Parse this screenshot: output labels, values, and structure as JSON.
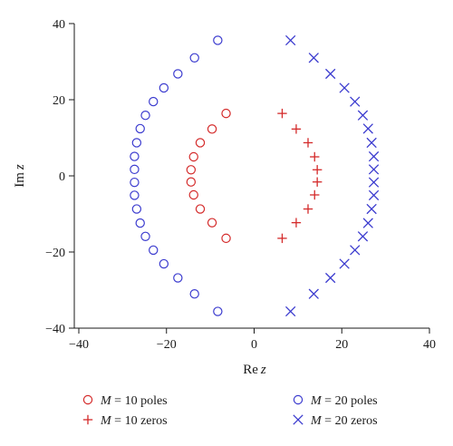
{
  "chart_data": {
    "type": "scatter",
    "title": "",
    "xlabel": {
      "main": "Re",
      "var": "z"
    },
    "ylabel": {
      "main": "Im",
      "var": "z"
    },
    "xlim": [
      -40,
      40
    ],
    "ylim": [
      -40,
      40
    ],
    "xticks": [
      -40,
      -20,
      0,
      20,
      40
    ],
    "yticks": [
      -40,
      -20,
      0,
      20,
      40
    ],
    "xtick_labels": [
      "−40",
      "−20",
      "0",
      "20",
      "40"
    ],
    "ytick_labels": [
      "−40",
      "−20",
      "0",
      "20",
      "40"
    ],
    "grid": false,
    "legend_position": "bottom",
    "series": [
      {
        "name": "M = 10 poles",
        "legend_var": "M",
        "legend_rest": " = 10 poles",
        "marker": "circle",
        "color": "#d42a2a",
        "x": [
          -6.4,
          -9.6,
          -12.3,
          -13.8,
          -14.4,
          -14.4,
          -13.8,
          -12.3,
          -9.6,
          -6.4
        ],
        "y": [
          16.4,
          12.3,
          8.7,
          5.0,
          1.6,
          -1.6,
          -5.0,
          -8.7,
          -12.3,
          -16.4
        ]
      },
      {
        "name": "M = 10 zeros",
        "legend_var": "M",
        "legend_rest": " = 10 zeros",
        "marker": "plus",
        "color": "#d42a2a",
        "x": [
          6.4,
          9.6,
          12.3,
          13.8,
          14.4,
          14.4,
          13.8,
          12.3,
          9.6,
          6.4
        ],
        "y": [
          16.4,
          12.3,
          8.7,
          5.0,
          1.6,
          -1.6,
          -5.0,
          -8.7,
          -12.3,
          -16.4
        ]
      },
      {
        "name": "M = 20 poles",
        "legend_var": "M",
        "legend_rest": " = 20 poles",
        "marker": "circle",
        "color": "#3c3ccf",
        "x": [
          -8.3,
          -13.6,
          -17.4,
          -20.6,
          -23.0,
          -24.8,
          -26.0,
          -26.8,
          -27.3,
          -27.3,
          -27.3,
          -27.3,
          -26.8,
          -26.0,
          -24.8,
          -23.0,
          -20.6,
          -17.4,
          -13.6,
          -8.3
        ],
        "y": [
          35.6,
          31.0,
          26.8,
          23.1,
          19.5,
          15.9,
          12.4,
          8.7,
          5.1,
          1.7,
          -1.7,
          -5.1,
          -8.7,
          -12.4,
          -15.9,
          -19.5,
          -23.1,
          -26.8,
          -31.0,
          -35.6
        ]
      },
      {
        "name": "M = 20 zeros",
        "legend_var": "M",
        "legend_rest": " = 20 zeros",
        "marker": "cross",
        "color": "#3c3ccf",
        "x": [
          8.3,
          13.6,
          17.4,
          20.6,
          23.0,
          24.8,
          26.0,
          26.8,
          27.3,
          27.3,
          27.3,
          27.3,
          26.8,
          26.0,
          24.8,
          23.0,
          20.6,
          17.4,
          13.6,
          8.3
        ],
        "y": [
          35.6,
          31.0,
          26.8,
          23.1,
          19.5,
          15.9,
          12.4,
          8.7,
          5.1,
          1.7,
          -1.7,
          -5.1,
          -8.7,
          -12.4,
          -15.9,
          -19.5,
          -23.1,
          -26.8,
          -31.0,
          -35.6
        ]
      }
    ]
  }
}
